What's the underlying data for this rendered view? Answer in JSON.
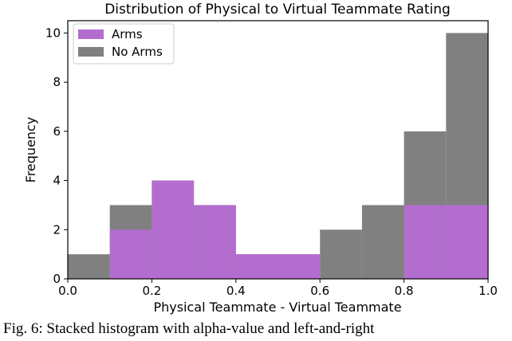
{
  "chart_data": {
    "type": "bar",
    "title": "Distribution of Physical to Virtual Teammate Rating",
    "xlabel": "Physical Teammate - Virtual Teammate",
    "ylabel": "Frequency",
    "xlim": [
      0.0,
      1.0
    ],
    "ylim": [
      0,
      10.5
    ],
    "xticks": [
      "0.0",
      "0.2",
      "0.4",
      "0.6",
      "0.8",
      "1.0"
    ],
    "yticks": [
      "0",
      "2",
      "4",
      "6",
      "8",
      "10"
    ],
    "bin_edges": [
      0.0,
      0.1,
      0.2,
      0.3,
      0.4,
      0.5,
      0.6,
      0.7,
      0.8,
      0.9,
      1.0
    ],
    "legend_position": "top-left",
    "series": [
      {
        "name": "No Arms",
        "color": "#808080",
        "values": [
          1,
          3,
          4,
          3,
          1,
          1,
          2,
          3,
          6,
          10
        ]
      },
      {
        "name": "Arms",
        "color": "#b36dcf",
        "values": [
          0,
          2,
          4,
          3,
          1,
          1,
          0,
          0,
          3,
          3
        ]
      }
    ],
    "legend": [
      "Arms",
      "No Arms"
    ]
  },
  "caption_text": "Fig. 6: Stacked histogram with alpha-value and left-and-right"
}
